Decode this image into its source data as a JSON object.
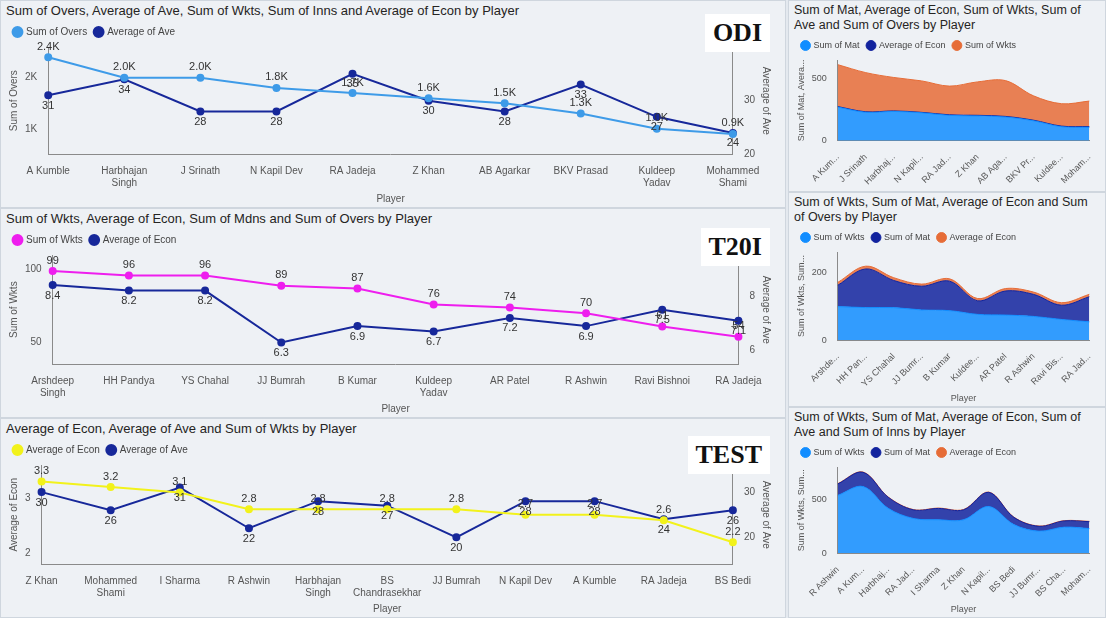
{
  "chart_data": [
    {
      "type": "line",
      "title": "Sum of Overs, Average of Ave, Sum of Wkts, Sum of Inns and Average of Econ by Player",
      "annotation": "ODI",
      "x_label": "Player",
      "y_label": "Sum of Overs",
      "y2_label": "Average of Ave",
      "categories": [
        "A Kumble",
        "Harbhajan Singh",
        "J Srinath",
        "N Kapil Dev",
        "RA Jadeja",
        "Z Khan",
        "AB Agarkar",
        "BKV Prasad",
        "Kuldeep Yadav",
        "Mohammed Shami"
      ],
      "series": [
        {
          "name": "Sum of Overs",
          "color": "#3e9be8",
          "marker": "circle",
          "values": [
            2400,
            2000,
            2000,
            1800,
            1700,
            1600,
            1500,
            1300,
            1000,
            900
          ],
          "value_labels": [
            "2.4K",
            "2.0K",
            "2.0K",
            "1.8K",
            "1.7K",
            "1.6K",
            "1.5K",
            "1.3K",
            "1.0K",
            "0.9K"
          ]
        },
        {
          "name": "Average of Ave",
          "color": "#17289a",
          "marker": "circle",
          "axis": "y2",
          "values": [
            31,
            34,
            28,
            28,
            35,
            30,
            28,
            33,
            27,
            24
          ]
        }
      ],
      "ylim": [
        500,
        2600
      ],
      "yticks": [
        {
          "value": 1000,
          "label": "1K"
        },
        {
          "value": 2000,
          "label": "2K"
        }
      ],
      "y2lim": [
        20,
        40
      ],
      "y2ticks": [
        20,
        30
      ],
      "data_labels": true,
      "legend": "top-left",
      "grid": false
    },
    {
      "type": "line",
      "title": "Sum of Wkts, Average of Econ, Sum of Mdns and Sum of Overs by Player",
      "annotation": "T20I",
      "x_label": "Player",
      "y_label": "Sum of Wkts",
      "y2_label": "Average of Ave",
      "categories": [
        "Arshdeep Singh",
        "HH Pandya",
        "YS Chahal",
        "JJ Bumrah",
        "B Kumar",
        "Kuldeep Yadav",
        "AR Patel",
        "R Ashwin",
        "Ravi Bishnoi",
        "RA Jadeja"
      ],
      "series": [
        {
          "name": "Sum of Wkts",
          "color": "#ee1eee",
          "marker": "circle",
          "values": [
            99,
            96,
            96,
            89,
            87,
            76,
            74,
            70,
            61,
            54
          ]
        },
        {
          "name": "Average of Econ",
          "color": "#17289a",
          "marker": "circle",
          "axis": "y2",
          "values": [
            8.4,
            8.2,
            8.2,
            6.3,
            6.9,
            6.7,
            7.2,
            6.9,
            7.5,
            7.1
          ]
        }
      ],
      "ylim": [
        35,
        110
      ],
      "yticks": [
        50,
        100
      ],
      "y2lim": [
        5.5,
        9.5
      ],
      "y2ticks": [
        6,
        8
      ],
      "data_labels": true,
      "legend": "top-left",
      "grid": false
    },
    {
      "type": "line",
      "title": "Average of Econ, Average of Ave and Sum of Wkts by Player",
      "annotation": "TEST",
      "x_label": "Player",
      "y_label": "Average of Econ",
      "y2_label": "Average of Ave",
      "categories": [
        "Z Khan",
        "Mohammed Shami",
        "I Sharma",
        "R Ashwin",
        "Harbhajan Singh",
        "BS Chandrasekhar",
        "JJ Bumrah",
        "N Kapil Dev",
        "A Kumble",
        "RA Jadeja",
        "BS Bedi"
      ],
      "series": [
        {
          "name": "Average of Econ",
          "color": "#f2f21b",
          "marker": "circle",
          "values": [
            3.3,
            3.2,
            3.1,
            2.8,
            2.8,
            2.8,
            2.8,
            2.7,
            2.7,
            2.6,
            2.2
          ]
        },
        {
          "name": "Average of Ave",
          "color": "#17289a",
          "marker": "circle",
          "axis": "y2",
          "values": [
            30,
            26,
            31,
            22,
            28,
            27,
            20,
            28,
            28,
            24,
            26
          ]
        }
      ],
      "ylim": [
        1.8,
        3.6
      ],
      "yticks": [
        2,
        3
      ],
      "y2lim": [
        14,
        36
      ],
      "y2ticks": [
        20,
        30
      ],
      "data_labels": true,
      "legend": "top-left",
      "grid": false
    },
    {
      "type": "area",
      "stacked": true,
      "title": "Sum of Mat, Average of Econ, Sum of Wkts, Sum of Ave and Sum of Overs by Player",
      "y_label": "Sum of Mat, Avera...",
      "categories": [
        "A Kum...",
        "J Srinath",
        "Harbhaj...",
        "N Kapil...",
        "RA Jad...",
        "Z Khan",
        "AB Aga...",
        "BKV Pr...",
        "Kuldee...",
        "Moham..."
      ],
      "series": [
        {
          "name": "Sum of Mat",
          "color": "#118dff",
          "values": [
            271,
            229,
            236,
            225,
            204,
            200,
            191,
            161,
            113,
            108
          ]
        },
        {
          "name": "Average of Econ",
          "color": "#12239e",
          "values": [
            4.3,
            4.4,
            4.3,
            3.7,
            4.9,
            4.9,
            5.1,
            4.7,
            5.2,
            5.6
          ]
        },
        {
          "name": "Sum of Wkts",
          "color": "#e66c37",
          "values": [
            337,
            315,
            269,
            253,
            231,
            269,
            288,
            196,
            180,
            206
          ]
        }
      ],
      "ylim": [
        0,
        650
      ],
      "yticks": [
        0,
        500
      ],
      "legend": "top-left",
      "grid": false
    },
    {
      "type": "area",
      "stacked": true,
      "title": "Sum of Wkts, Sum of Mat, Average of Econ and Sum of Overs by Player",
      "x_label": "Player",
      "y_label": "Sum of Wkts, Sum...",
      "categories": [
        "Arshde...",
        "HH Pan...",
        "YS Chahal",
        "JJ Bumr...",
        "B Kumar",
        "Kuldee...",
        "AR Patel",
        "R Ashwin",
        "Ravi Bis...",
        "RA Jad..."
      ],
      "series": [
        {
          "name": "Sum of Wkts",
          "color": "#118dff",
          "values": [
            99,
            96,
            96,
            89,
            87,
            76,
            74,
            70,
            61,
            54
          ]
        },
        {
          "name": "Sum of Mat",
          "color": "#12239e",
          "values": [
            63,
            114,
            80,
            70,
            87,
            40,
            71,
            65,
            42,
            74
          ]
        },
        {
          "name": "Average of Econ",
          "color": "#e66c37",
          "values": [
            8.4,
            8.2,
            8.2,
            6.3,
            6.9,
            6.7,
            7.2,
            6.9,
            7.5,
            7.1
          ]
        }
      ],
      "ylim": [
        0,
        260
      ],
      "yticks": [
        0,
        200
      ],
      "legend": "top-left",
      "grid": false
    },
    {
      "type": "area",
      "stacked": true,
      "title": "Sum of Wkts, Sum of Mat, Average of Econ, Sum of Ave and Sum of Inns by Player",
      "x_label": "Player",
      "y_label": "Sum of Wkts, Sum...",
      "categories": [
        "R Ashwin",
        "A Kum...",
        "Harbhaj...",
        "RA Jad...",
        "I Sharma",
        "Z Khan",
        "N Kapil...",
        "BS Bedi",
        "JJ Bumr...",
        "BS Cha...",
        "Moham..."
      ],
      "series": [
        {
          "name": "Sum of Wkts",
          "color": "#118dff",
          "values": [
            537,
            619,
            417,
            323,
            311,
            311,
            434,
            266,
            205,
            242,
            229
          ]
        },
        {
          "name": "Sum of Mat",
          "color": "#12239e",
          "values": [
            106,
            132,
            103,
            80,
            105,
            92,
            131,
            67,
            45,
            58,
            64
          ]
        },
        {
          "name": "Average of Econ",
          "color": "#e66c37",
          "values": [
            2.8,
            2.7,
            2.8,
            2.6,
            3.1,
            3.3,
            2.7,
            2.2,
            2.8,
            2.8,
            3.2
          ]
        }
      ],
      "ylim": [
        0,
        800
      ],
      "yticks": [
        0,
        500
      ],
      "legend": "top-left",
      "grid": false
    }
  ]
}
